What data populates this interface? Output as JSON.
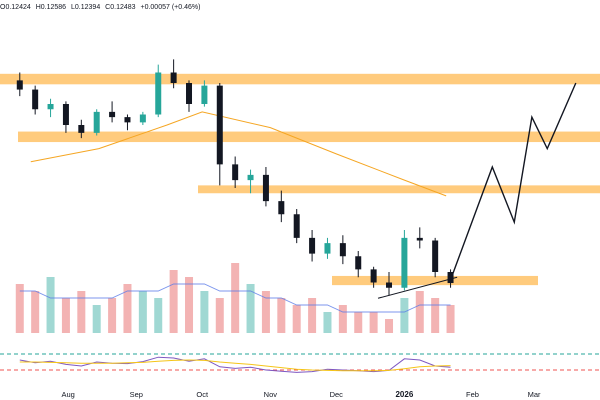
{
  "header": {
    "open": "O0.12424",
    "high": "H0.12586",
    "low": "L0.12394",
    "close": "C0.12483",
    "change": "+0.00057 (+0.46%)"
  },
  "colors": {
    "up": "#26a69a",
    "down": "#131722",
    "zone": "#ffc266",
    "ma": "#f5a623",
    "rsi": "#7e57c2",
    "rsi_ma": "#f5c518",
    "vol_up": "#80cbc4",
    "vol_down": "#ef9a9a",
    "vol_ma": "#5b7ce8",
    "level_green": "#26a69a",
    "level_red": "#ef5350",
    "projection": "#131722"
  },
  "chart_data": [
    {
      "type": "candlestick",
      "title": "",
      "xlabel": "",
      "ylabel": "",
      "x_ticks": [
        "Aug",
        "Sep",
        "Oct",
        "Nov",
        "Dec",
        "2026",
        "Feb",
        "Mar"
      ],
      "last_close": 0.12483,
      "price_range": [
        0.105,
        0.225
      ],
      "support_resistance_zones": [
        {
          "low": 0.2005,
          "high": 0.2045
        },
        {
          "low": 0.1785,
          "high": 0.1825
        },
        {
          "low": 0.159,
          "high": 0.162
        },
        {
          "low": 0.124,
          "high": 0.1275
        }
      ],
      "moving_average": [
        {
          "date": "2025-07-15",
          "value": 0.171
        },
        {
          "date": "2025-08-15",
          "value": 0.176
        },
        {
          "date": "2025-09-15",
          "value": 0.185
        },
        {
          "date": "2025-10-01",
          "value": 0.19
        },
        {
          "date": "2025-11-01",
          "value": 0.184
        },
        {
          "date": "2025-12-01",
          "value": 0.174
        },
        {
          "date": "2026-01-01",
          "value": 0.164
        },
        {
          "date": "2026-01-20",
          "value": 0.158
        }
      ],
      "trendline": [
        {
          "date": "2025-12-20",
          "value": 0.119
        },
        {
          "date": "2026-01-25",
          "value": 0.127
        }
      ],
      "projection_path": [
        {
          "date": "2026-01-22",
          "value": 0.126
        },
        {
          "date": "2026-02-10",
          "value": 0.169
        },
        {
          "date": "2026-02-20",
          "value": 0.148
        },
        {
          "date": "2026-02-28",
          "value": 0.188
        },
        {
          "date": "2026-03-07",
          "value": 0.176
        },
        {
          "date": "2026-03-20",
          "value": 0.201
        }
      ],
      "candles_est": [
        {
          "date": "2025-07-10",
          "o": 0.202,
          "h": 0.205,
          "l": 0.196,
          "c": 0.1985
        },
        {
          "date": "2025-07-17",
          "o": 0.1985,
          "h": 0.2,
          "l": 0.189,
          "c": 0.191
        },
        {
          "date": "2025-07-24",
          "o": 0.191,
          "h": 0.195,
          "l": 0.188,
          "c": 0.193
        },
        {
          "date": "2025-07-31",
          "o": 0.193,
          "h": 0.194,
          "l": 0.182,
          "c": 0.185
        },
        {
          "date": "2025-08-07",
          "o": 0.185,
          "h": 0.187,
          "l": 0.18,
          "c": 0.182
        },
        {
          "date": "2025-08-14",
          "o": 0.182,
          "h": 0.191,
          "l": 0.181,
          "c": 0.19
        },
        {
          "date": "2025-08-21",
          "o": 0.19,
          "h": 0.194,
          "l": 0.186,
          "c": 0.188
        },
        {
          "date": "2025-08-28",
          "o": 0.188,
          "h": 0.189,
          "l": 0.183,
          "c": 0.186
        },
        {
          "date": "2025-09-04",
          "o": 0.186,
          "h": 0.19,
          "l": 0.185,
          "c": 0.189
        },
        {
          "date": "2025-09-11",
          "o": 0.189,
          "h": 0.208,
          "l": 0.188,
          "c": 0.205
        },
        {
          "date": "2025-09-18",
          "o": 0.205,
          "h": 0.21,
          "l": 0.199,
          "c": 0.201
        },
        {
          "date": "2025-09-25",
          "o": 0.201,
          "h": 0.202,
          "l": 0.19,
          "c": 0.193
        },
        {
          "date": "2025-10-02",
          "o": 0.193,
          "h": 0.202,
          "l": 0.192,
          "c": 0.2
        },
        {
          "date": "2025-10-09",
          "o": 0.2,
          "h": 0.201,
          "l": 0.162,
          "c": 0.17
        },
        {
          "date": "2025-10-16",
          "o": 0.17,
          "h": 0.173,
          "l": 0.161,
          "c": 0.164
        },
        {
          "date": "2025-10-23",
          "o": 0.164,
          "h": 0.168,
          "l": 0.159,
          "c": 0.166
        },
        {
          "date": "2025-10-30",
          "o": 0.166,
          "h": 0.169,
          "l": 0.154,
          "c": 0.156
        },
        {
          "date": "2025-11-06",
          "o": 0.156,
          "h": 0.16,
          "l": 0.148,
          "c": 0.151
        },
        {
          "date": "2025-11-13",
          "o": 0.151,
          "h": 0.153,
          "l": 0.14,
          "c": 0.142
        },
        {
          "date": "2025-11-20",
          "o": 0.142,
          "h": 0.145,
          "l": 0.133,
          "c": 0.136
        },
        {
          "date": "2025-11-27",
          "o": 0.136,
          "h": 0.142,
          "l": 0.134,
          "c": 0.14
        },
        {
          "date": "2025-12-04",
          "o": 0.14,
          "h": 0.143,
          "l": 0.132,
          "c": 0.135
        },
        {
          "date": "2025-12-11",
          "o": 0.135,
          "h": 0.137,
          "l": 0.127,
          "c": 0.13
        },
        {
          "date": "2025-12-18",
          "o": 0.13,
          "h": 0.131,
          "l": 0.123,
          "c": 0.125
        },
        {
          "date": "2025-12-25",
          "o": 0.125,
          "h": 0.129,
          "l": 0.12,
          "c": 0.123
        },
        {
          "date": "2026-01-01",
          "o": 0.123,
          "h": 0.145,
          "l": 0.122,
          "c": 0.142
        },
        {
          "date": "2026-01-08",
          "o": 0.142,
          "h": 0.146,
          "l": 0.138,
          "c": 0.141
        },
        {
          "date": "2026-01-15",
          "o": 0.141,
          "h": 0.142,
          "l": 0.127,
          "c": 0.129
        },
        {
          "date": "2026-01-22",
          "o": 0.129,
          "h": 0.13,
          "l": 0.123,
          "c": 0.1248
        }
      ]
    },
    {
      "type": "bar",
      "title": "",
      "series": [
        {
          "name": "",
          "values": [
            7,
            6,
            8,
            5,
            6,
            4,
            5,
            7,
            6,
            5,
            9,
            8,
            6,
            5,
            10,
            7,
            6,
            5,
            4,
            5,
            3,
            4,
            3,
            3,
            2,
            5,
            6,
            5,
            4
          ]
        },
        {
          "name": "",
          "values": [
            6,
            6,
            5,
            5,
            5,
            5,
            5,
            6,
            6,
            6,
            7,
            7,
            7,
            6,
            6,
            6,
            5,
            5,
            4,
            4,
            4,
            3,
            3,
            3,
            3,
            3,
            4,
            4,
            4
          ]
        }
      ]
    },
    {
      "type": "line",
      "title": "",
      "levels": [
        70,
        30
      ],
      "series": [
        {
          "name": "",
          "values": [
            55,
            48,
            52,
            44,
            40,
            50,
            47,
            46,
            51,
            62,
            60,
            52,
            58,
            38,
            34,
            37,
            30,
            27,
            24,
            26,
            32,
            30,
            28,
            26,
            29,
            58,
            55,
            40,
            37
          ]
        },
        {
          "name": "",
          "values": [
            50,
            50,
            49,
            48,
            47,
            47,
            47,
            48,
            49,
            52,
            54,
            55,
            54,
            50,
            47,
            44,
            40,
            36,
            32,
            30,
            29,
            28,
            28,
            28,
            29,
            33,
            38,
            40,
            41
          ]
        }
      ]
    }
  ]
}
